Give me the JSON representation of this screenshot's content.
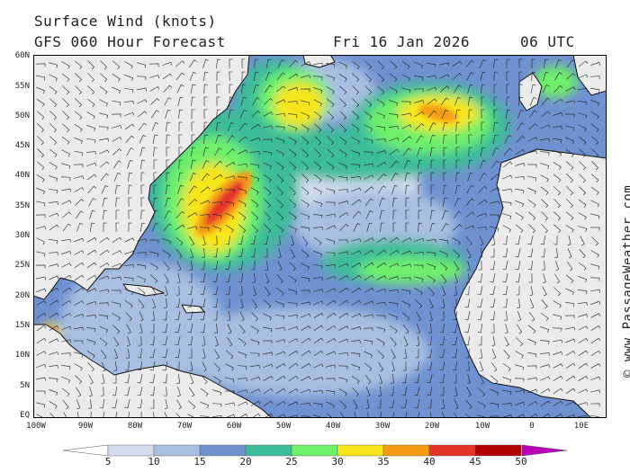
{
  "header": {
    "title": "Surface Wind (knots)",
    "subtitle": "GFS 060 Hour Forecast",
    "date": "Fri 16 Jan 2026",
    "time": "06 UTC"
  },
  "axes": {
    "lat_labels": [
      "60N",
      "55N",
      "50N",
      "45N",
      "40N",
      "35N",
      "30N",
      "25N",
      "20N",
      "15N",
      "10N",
      "5N",
      "EQ"
    ],
    "lon_labels": [
      "100W",
      "90W",
      "80W",
      "70W",
      "60W",
      "50W",
      "40W",
      "30W",
      "20W",
      "10W",
      "0",
      "10E"
    ]
  },
  "credit": "© www.PassageWeather.com",
  "colorbar": {
    "labels": [
      "5",
      "10",
      "15",
      "20",
      "25",
      "30",
      "35",
      "40",
      "45",
      "50"
    ],
    "colors": [
      "#ffffff",
      "#d2dcee",
      "#a9bfe1",
      "#6f91d0",
      "#3cbc9a",
      "#6ef06a",
      "#f7e51b",
      "#f59b12",
      "#e6332a",
      "#b00000",
      "#b800b8"
    ]
  },
  "colors": {
    "land": "#ebebeb",
    "ocean_light": "#d2dcee",
    "coast": "#111111"
  }
}
